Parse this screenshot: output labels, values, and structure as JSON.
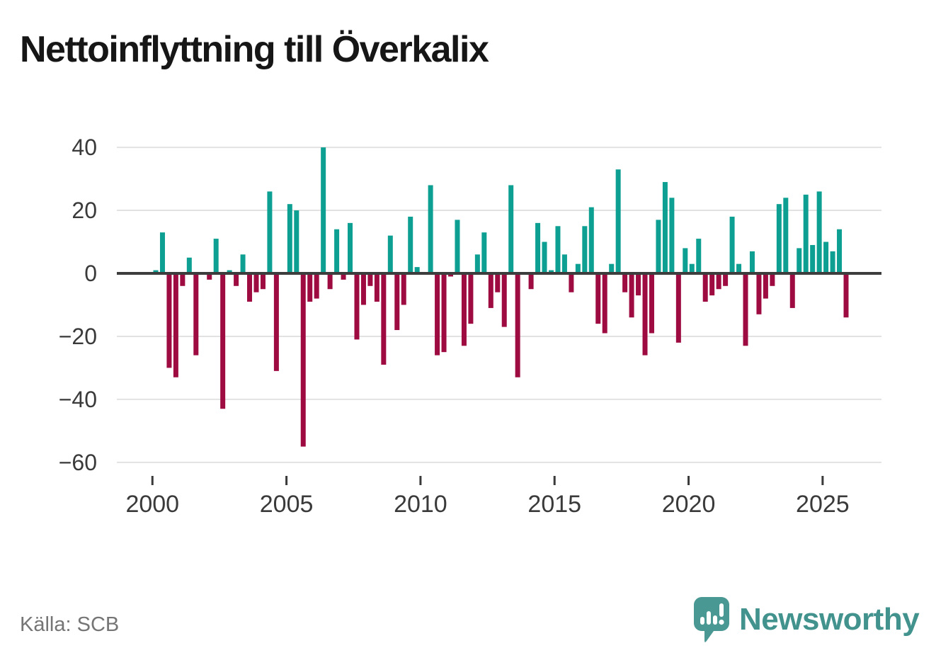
{
  "title": "Nettoinflyttning till Överkalix",
  "source": "Källa: SCB",
  "branding": {
    "logo_text": "Newsworthy",
    "logo_color": "#4a9894",
    "text_color": "#42928e"
  },
  "chart_data": {
    "type": "bar",
    "title": "Nettoinflyttning till Överkalix",
    "frequency": "quarterly",
    "start_year": 2000,
    "values": [
      1,
      13,
      -30,
      -33,
      -4,
      5,
      -26,
      0,
      -2,
      11,
      -43,
      1,
      -4,
      6,
      -9,
      -6,
      -5,
      26,
      -31,
      0,
      22,
      20,
      -55,
      -9,
      -8,
      40,
      -5,
      14,
      -2,
      16,
      -21,
      -10,
      -4,
      -9,
      -29,
      12,
      -18,
      -10,
      18,
      2,
      0,
      28,
      -26,
      -25,
      -1,
      17,
      -23,
      -16,
      6,
      13,
      -11,
      -6,
      -17,
      28,
      -33,
      0,
      -5,
      16,
      10,
      1,
      15,
      6,
      -6,
      3,
      15,
      21,
      -16,
      -19,
      3,
      33,
      -6,
      -14,
      -7,
      -26,
      -19,
      17,
      29,
      24,
      -22,
      8,
      3,
      11,
      -9,
      -7,
      -5,
      -4,
      18,
      3,
      -23,
      7,
      -13,
      -8,
      -4,
      22,
      24,
      -11,
      8,
      25,
      9,
      26,
      10,
      7,
      14,
      -14
    ],
    "yticks": [
      40,
      20,
      0,
      -20,
      -40,
      -60
    ],
    "ytick_labels": [
      "40",
      "20",
      "0",
      "−20",
      "−40",
      "−60"
    ],
    "xticks": [
      2000,
      2005,
      2010,
      2015,
      2020,
      2025
    ],
    "ylim": [
      -60,
      42
    ],
    "grid": true,
    "positive_color": "#0da092",
    "negative_color": "#9e0b41",
    "axis_color": "#3d3d3d",
    "gridline_color": "#e2e2e2",
    "tick_label_color": "#3a3a3a"
  }
}
